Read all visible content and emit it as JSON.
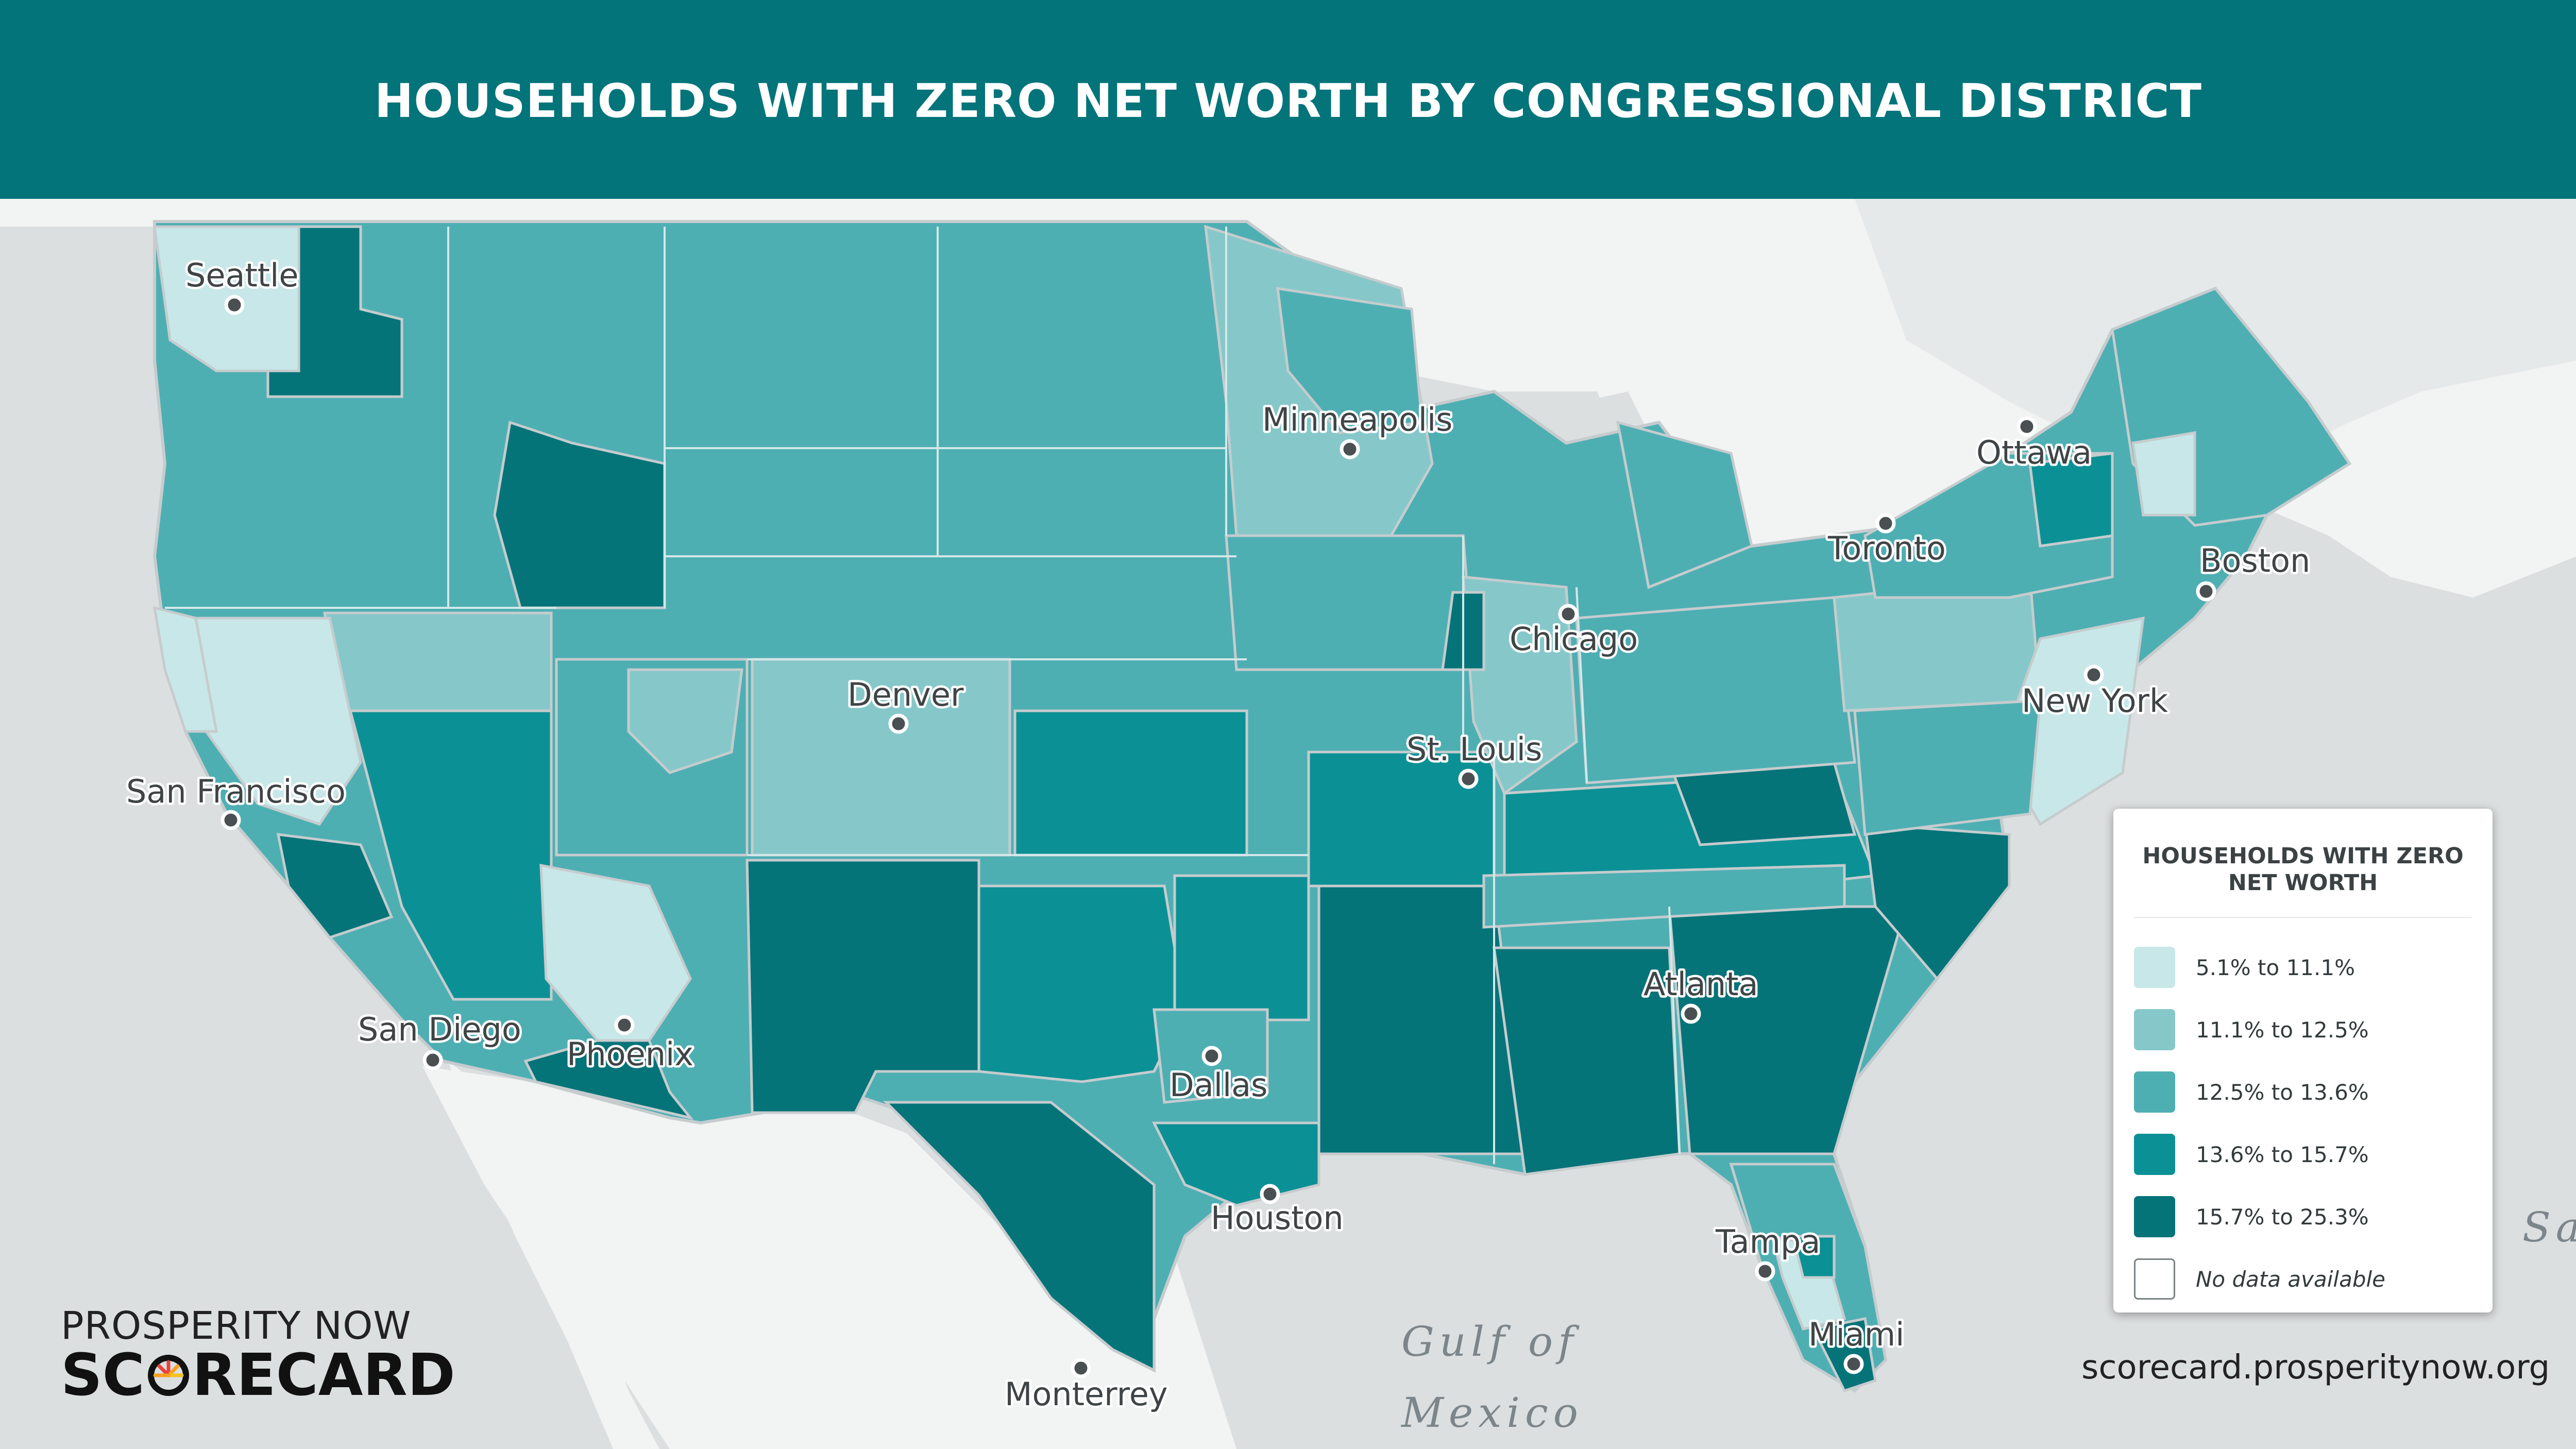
{
  "header": {
    "title": "HOUSEHOLDS WITH ZERO NET WORTH BY CONGRESSIONAL DISTRICT",
    "background_color": "#02747a"
  },
  "map": {
    "cities": [
      {
        "name": "Seattle"
      },
      {
        "name": "San Francisco"
      },
      {
        "name": "San Diego"
      },
      {
        "name": "Phoenix"
      },
      {
        "name": "Denver"
      },
      {
        "name": "Minneapolis"
      },
      {
        "name": "Chicago"
      },
      {
        "name": "St. Louis"
      },
      {
        "name": "Dallas"
      },
      {
        "name": "Houston"
      },
      {
        "name": "Atlanta"
      },
      {
        "name": "Tampa"
      },
      {
        "name": "Miami"
      },
      {
        "name": "New York"
      },
      {
        "name": "Boston"
      },
      {
        "name": "Toronto"
      },
      {
        "name": "Ottawa"
      },
      {
        "name": "Monterrey"
      }
    ],
    "water_labels": [
      "Gulf of",
      "Mexico",
      "Sa"
    ],
    "colors": {
      "land": "#f2f3f3",
      "water": "#dcdfe0",
      "border": "#c6ccce"
    }
  },
  "legend": {
    "title_line1": "HOUSEHOLDS WITH ZERO",
    "title_line2": "NET WORTH",
    "items": [
      {
        "label": "5.1% to 11.1%",
        "color": "#c8e7e8"
      },
      {
        "label": "11.1% to 12.5%",
        "color": "#86c8ca"
      },
      {
        "label": "12.5% to 13.6%",
        "color": "#4eafb3"
      },
      {
        "label": "13.6% to 15.7%",
        "color": "#0b9195"
      },
      {
        "label": "15.7% to 25.3%",
        "color": "#057479"
      },
      {
        "label": "No data available",
        "color": "#ffffff"
      }
    ]
  },
  "brand": {
    "top": "PROSPERITY NOW",
    "bottom_prefix": "SC",
    "bottom_suffix": "RECARD"
  },
  "footer": {
    "url": "scorecard.prosperitynow.org"
  }
}
